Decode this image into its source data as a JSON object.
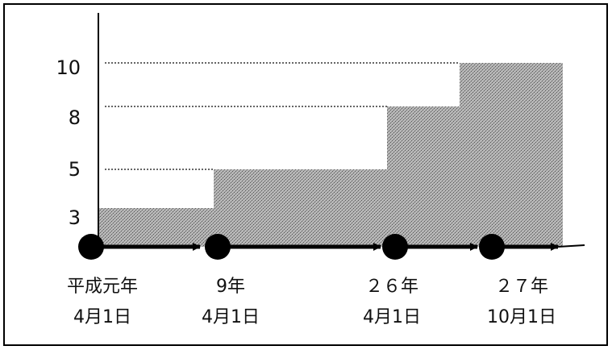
{
  "chart_data": {
    "type": "area",
    "title": "",
    "xlabel": "",
    "ylabel": "",
    "ylim": [
      2,
      10
    ],
    "yticks": [
      3,
      5,
      8,
      10
    ],
    "step_values": [
      3,
      5,
      8,
      10
    ],
    "x_points": [
      {
        "line1": "平成元年",
        "line2": "4月1日"
      },
      {
        "line1": "9年",
        "line2": "4月1日"
      },
      {
        "line1": "２６年",
        "line2": "4月1日"
      },
      {
        "line1": "２７年",
        "line2": "10月1日"
      }
    ],
    "grid": "dotted reference lines at each step level",
    "fill_color": "#9a9a9a"
  }
}
